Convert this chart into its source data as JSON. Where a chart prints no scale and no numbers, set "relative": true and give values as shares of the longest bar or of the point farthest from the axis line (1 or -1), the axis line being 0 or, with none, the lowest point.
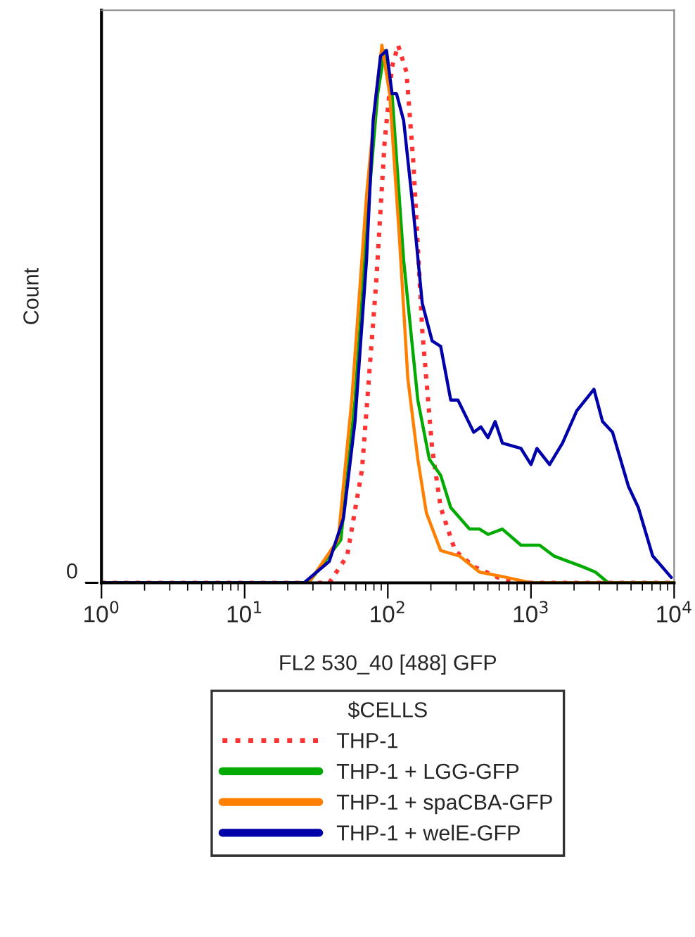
{
  "chart_data": {
    "type": "line",
    "relative": true,
    "log": "x",
    "xlabel": "FL2 530_40 [488] GFP",
    "ylabel": "Count",
    "legend_title": "$CELLS",
    "legend": "bottom",
    "grid": false,
    "marker": "none",
    "xlim": [
      1,
      10000
    ],
    "xticks": [
      {
        "value": 1,
        "label": "10$^{0}$"
      },
      {
        "value": 10,
        "label": "10$^{1}$"
      },
      {
        "value": 100,
        "label": "10$^{2}$"
      },
      {
        "value": 1000,
        "label": "10$^{3}$"
      },
      {
        "value": 10000,
        "label": "10$^{4}$"
      }
    ],
    "annotations": [
      "0"
    ],
    "series": [
      {
        "name": "THP-1",
        "color": "#ff3333",
        "line_style": "dotted",
        "x": [
          1,
          39,
          52,
          66,
          83,
          95,
          107,
          118,
          135,
          151,
          174,
          204,
          234,
          295,
          398,
          589,
          794,
          10000
        ],
        "values": [
          0,
          0,
          0.05,
          0.21,
          0.56,
          0.82,
          0.96,
          1.0,
          0.95,
          0.78,
          0.47,
          0.25,
          0.14,
          0.06,
          0.03,
          0.01,
          0,
          0
        ]
      },
      {
        "name": "THP-1 + LGG-GFP",
        "color": "#00aa00",
        "line_style": "solid",
        "x": [
          1,
          28,
          47,
          59,
          74,
          85,
          95,
          107,
          129,
          162,
          195,
          234,
          275,
          372,
          437,
          501,
          631,
          851,
          1148,
          1445,
          2291,
          2818,
          3467,
          10000
        ],
        "values": [
          0,
          0,
          0.08,
          0.34,
          0.72,
          0.91,
          0.99,
          0.91,
          0.6,
          0.34,
          0.23,
          0.2,
          0.14,
          0.1,
          0.1,
          0.09,
          0.1,
          0.07,
          0.07,
          0.05,
          0.03,
          0.02,
          0,
          0
        ]
      },
      {
        "name": "THP-1 + spaCBA-GFP",
        "color": "#ff8000",
        "line_style": "solid",
        "x": [
          1,
          28,
          45,
          56,
          71,
          83,
          91,
          103,
          120,
          138,
          162,
          186,
          234,
          316,
          437,
          676,
          1000,
          10000
        ],
        "values": [
          0,
          0,
          0.08,
          0.34,
          0.72,
          0.91,
          1.0,
          0.91,
          0.65,
          0.38,
          0.23,
          0.13,
          0.06,
          0.05,
          0.02,
          0.01,
          0,
          0
        ]
      },
      {
        "name": "THP-1 + welE-GFP",
        "color": "#0000aa",
        "line_style": "solid",
        "x": [
          1,
          26,
          39,
          49,
          59,
          71,
          79,
          89,
          98,
          107,
          115,
          129,
          151,
          174,
          204,
          234,
          275,
          309,
          398,
          447,
          501,
          562,
          631,
          851,
          1000,
          1100,
          1349,
          1660,
          2089,
          2754,
          3162,
          3715,
          4786,
          5623,
          7079,
          9550
        ],
        "values": [
          0,
          0,
          0.04,
          0.12,
          0.3,
          0.6,
          0.86,
          0.98,
          0.99,
          0.91,
          0.91,
          0.86,
          0.69,
          0.52,
          0.45,
          0.44,
          0.34,
          0.34,
          0.28,
          0.29,
          0.27,
          0.3,
          0.26,
          0.25,
          0.22,
          0.25,
          0.22,
          0.26,
          0.32,
          0.36,
          0.3,
          0.28,
          0.18,
          0.14,
          0.05,
          0.01
        ]
      }
    ]
  }
}
